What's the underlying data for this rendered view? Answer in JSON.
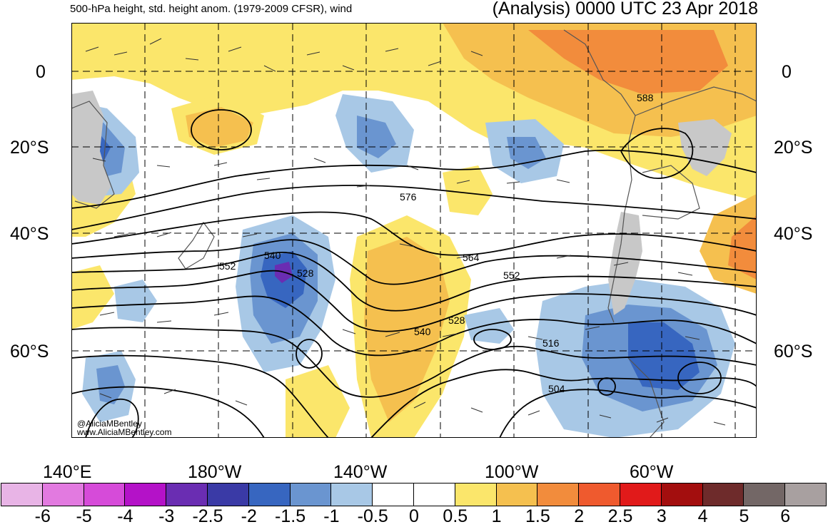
{
  "header": {
    "left_title": "500-hPa height, std. height anom. (1979-2009 CFSR), wind",
    "right_title": "(Analysis) 0000 UTC 23 Apr 2018"
  },
  "latitude_labels": [
    "0",
    "20°S",
    "40°S",
    "60°S"
  ],
  "longitude_labels": [
    "140°E",
    "180°W",
    "140°W",
    "100°W",
    "60°W"
  ],
  "contour_labels": [
    "588",
    "576",
    "564",
    "552",
    "552",
    "540",
    "540",
    "528",
    "528",
    "516",
    "504"
  ],
  "credits": [
    "@AliciaMBentley",
    "www.AliciaMBentley.com"
  ],
  "colorbar": {
    "tick_labels": [
      "-6",
      "-5",
      "-4",
      "-3",
      "-2.5",
      "-2",
      "-1.5",
      "-1",
      "-0.5",
      "0",
      "0.5",
      "1",
      "1.5",
      "2",
      "2.5",
      "3",
      "4",
      "5",
      "6"
    ],
    "colors": [
      "#e8b4e6",
      "#e27ae0",
      "#d64bd9",
      "#b412c8",
      "#6a2db2",
      "#3a3aa6",
      "#3766c0",
      "#6a95d0",
      "#a8c8e6",
      "#ffffff",
      "#ffffff",
      "#fbe66b",
      "#f5c04f",
      "#f28c3c",
      "#ef5a2e",
      "#e11a1a",
      "#a30e0e",
      "#6e2b2b",
      "#736766",
      "#a8a0a0"
    ]
  },
  "colors": {
    "land_gray": "#c8c8c8",
    "contour": "#000000",
    "grid": "#000000"
  }
}
